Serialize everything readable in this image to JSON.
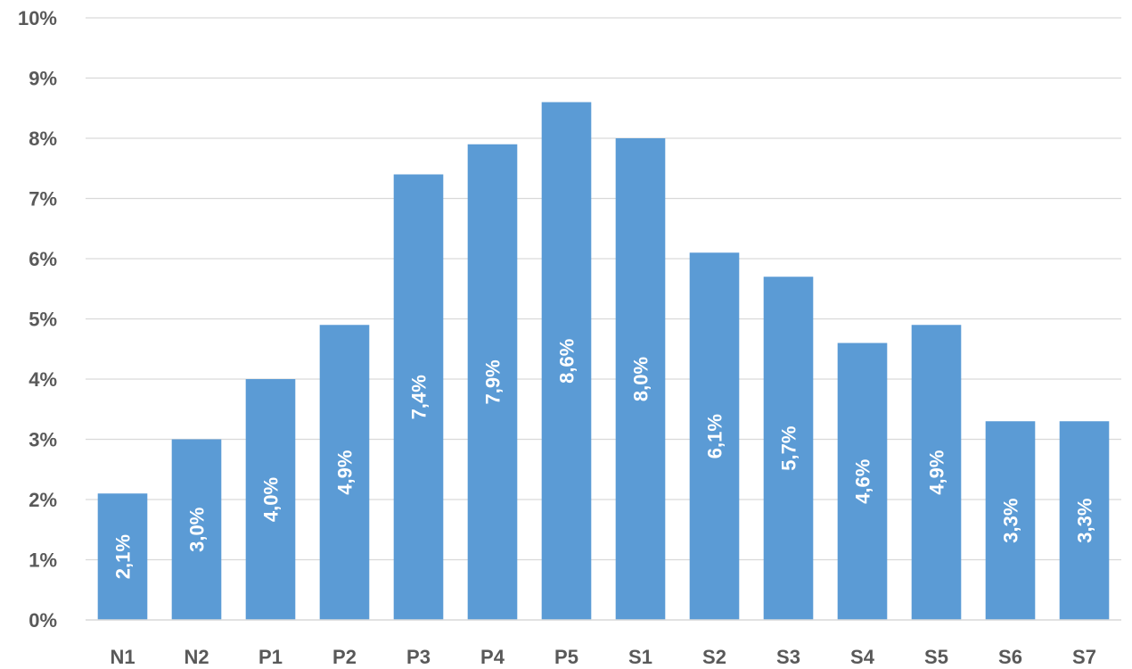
{
  "chart_data": {
    "type": "bar",
    "categories": [
      "N1",
      "N2",
      "P1",
      "P2",
      "P3",
      "P4",
      "P5",
      "S1",
      "S2",
      "S3",
      "S4",
      "S5",
      "S6",
      "S7"
    ],
    "values": [
      2.1,
      3.0,
      4.0,
      4.9,
      7.4,
      7.9,
      8.6,
      8.0,
      6.1,
      5.7,
      4.6,
      4.9,
      3.3,
      3.3
    ],
    "data_labels": [
      "2,1%",
      "3,0%",
      "4,0%",
      "4,9%",
      "7,4%",
      "7,9%",
      "8,6%",
      "8,0%",
      "6,1%",
      "5,7%",
      "4,6%",
      "4,9%",
      "3,3%",
      "3,3%"
    ],
    "yticks": [
      0,
      1,
      2,
      3,
      4,
      5,
      6,
      7,
      8,
      9,
      10
    ],
    "ytick_labels": [
      "0%",
      "1%",
      "2%",
      "3%",
      "4%",
      "5%",
      "6%",
      "7%",
      "8%",
      "9%",
      "10%"
    ],
    "ylim": [
      0,
      10
    ],
    "grid": true,
    "legend": "none",
    "bar_color": "#5b9bd5",
    "title": "",
    "xlabel": "",
    "ylabel": ""
  }
}
